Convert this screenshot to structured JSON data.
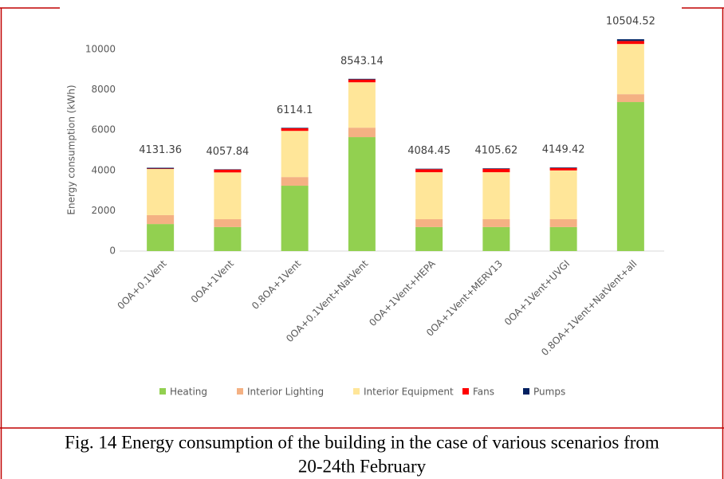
{
  "chart_data": {
    "type": "stacked_bar",
    "y_label": "Energy consumption (kWh)",
    "categories": [
      "0OA+0.1Vent",
      "0OA+1Vent",
      "0.8OA+1Vent",
      "0OA+0.1Vent+NatVent",
      "0OA+1Vent+HEPA",
      "0OA+1Vent+MERV13",
      "0OA+1Vent+UVGI",
      "0.8OA+1Vent+NatVent+all"
    ],
    "series": [
      {
        "name": "Heating",
        "color": "#92d050",
        "values": [
          1340,
          1190,
          3240,
          5650,
          1190,
          1190,
          1190,
          7390
        ]
      },
      {
        "name": "Interior Lighting",
        "color": "#f4b183",
        "values": [
          440,
          390,
          430,
          470,
          390,
          390,
          390,
          390
        ]
      },
      {
        "name": "Interior Equipment",
        "color": "#ffe699",
        "values": [
          2290,
          2320,
          2290,
          2250,
          2330,
          2330,
          2420,
          2490
        ]
      },
      {
        "name": "Fans",
        "color": "#ff0000",
        "values": [
          20,
          140,
          130,
          140,
          150,
          170,
          120,
          150
        ]
      },
      {
        "name": "Pumps",
        "color": "#002060",
        "values": [
          41,
          18,
          24,
          33,
          24,
          26,
          29,
          85
        ]
      }
    ],
    "totals": [
      4131.36,
      4057.84,
      6114.1,
      8543.14,
      4084.45,
      4105.62,
      4149.42,
      10504.52
    ],
    "ylim": [
      0,
      10000
    ],
    "yticks": [
      0,
      2000,
      4000,
      6000,
      8000,
      10000
    ],
    "legend": "bottom"
  },
  "caption": {
    "line1": "Fig. 14 Energy consumption of the building in the case of various scenarios from",
    "line2": "20-24th February"
  }
}
